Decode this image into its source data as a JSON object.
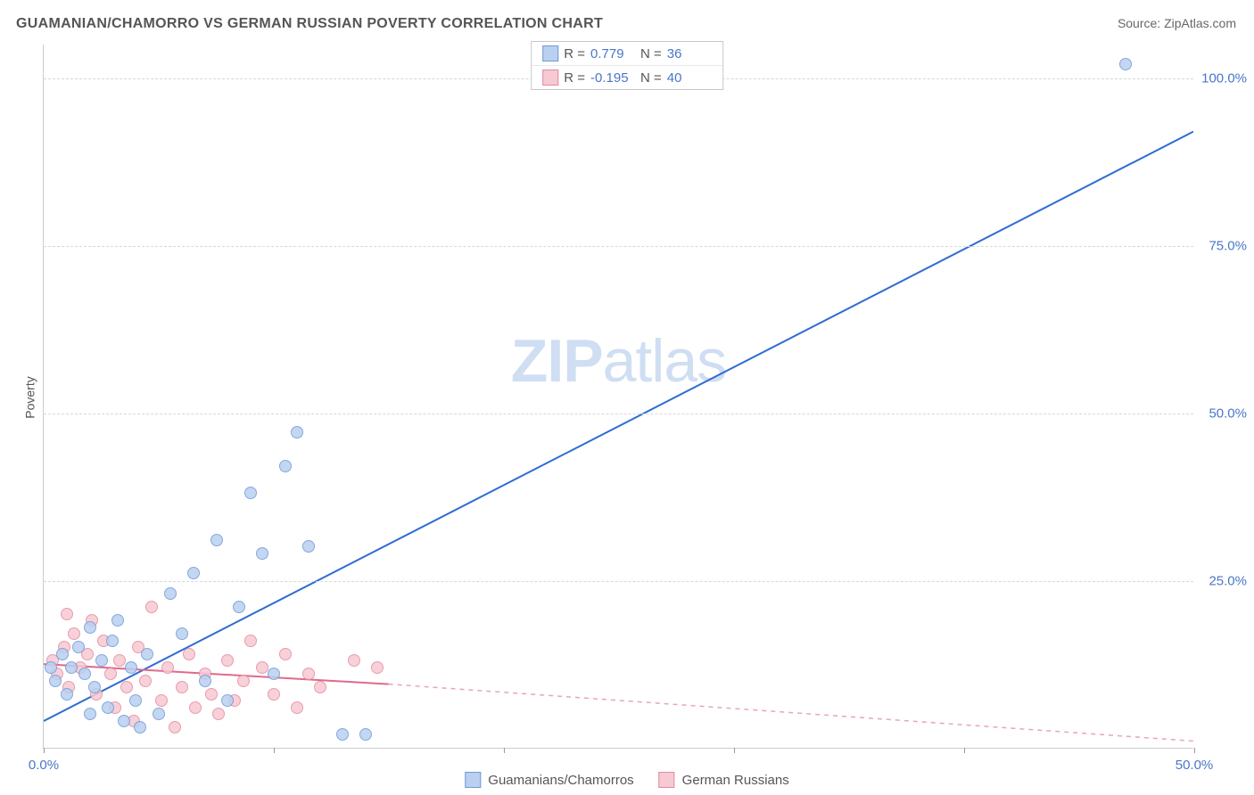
{
  "title": "GUAMANIAN/CHAMORRO VS GERMAN RUSSIAN POVERTY CORRELATION CHART",
  "source_prefix": "Source: ",
  "source_name": "ZipAtlas.com",
  "y_axis_label": "Poverty",
  "watermark_bold": "ZIP",
  "watermark_rest": "atlas",
  "chart": {
    "type": "scatter",
    "xlim": [
      0,
      50
    ],
    "ylim": [
      0,
      105
    ],
    "y_ticks": [
      25,
      50,
      75,
      100
    ],
    "y_tick_labels": [
      "25.0%",
      "50.0%",
      "75.0%",
      "100.0%"
    ],
    "x_ticks": [
      0,
      10,
      20,
      30,
      40,
      50
    ],
    "x_tick_labels": [
      "0.0%",
      "",
      "",
      "",
      "",
      "50.0%"
    ],
    "background_color": "#ffffff",
    "grid_color": "#d8d8d8",
    "axis_color": "#cccccc",
    "label_color": "#4a76c7",
    "series": [
      {
        "name": "Guamanians/Chamorros",
        "color_fill": "#b9d0f0",
        "color_stroke": "#6f9ad6",
        "marker_size": 14,
        "R": "0.779",
        "N": "36",
        "trend": {
          "x1": 0,
          "y1": 4,
          "x2": 50,
          "y2": 92,
          "color": "#2e6cd1",
          "width": 2,
          "dash": "none"
        },
        "points": [
          {
            "x": 0.3,
            "y": 12
          },
          {
            "x": 0.5,
            "y": 10
          },
          {
            "x": 0.8,
            "y": 14
          },
          {
            "x": 1.0,
            "y": 8
          },
          {
            "x": 1.2,
            "y": 12
          },
          {
            "x": 1.5,
            "y": 15
          },
          {
            "x": 1.8,
            "y": 11
          },
          {
            "x": 2.0,
            "y": 18
          },
          {
            "x": 2.2,
            "y": 9
          },
          {
            "x": 2.5,
            "y": 13
          },
          {
            "x": 2.8,
            "y": 6
          },
          {
            "x": 3.0,
            "y": 16
          },
          {
            "x": 3.2,
            "y": 19
          },
          {
            "x": 3.5,
            "y": 4
          },
          {
            "x": 3.8,
            "y": 12
          },
          {
            "x": 4.0,
            "y": 7
          },
          {
            "x": 4.5,
            "y": 14
          },
          {
            "x": 5.0,
            "y": 5
          },
          {
            "x": 5.5,
            "y": 23
          },
          {
            "x": 6.0,
            "y": 17
          },
          {
            "x": 6.5,
            "y": 26
          },
          {
            "x": 7.0,
            "y": 10
          },
          {
            "x": 7.5,
            "y": 31
          },
          {
            "x": 8.0,
            "y": 7
          },
          {
            "x": 8.5,
            "y": 21
          },
          {
            "x": 9.0,
            "y": 38
          },
          {
            "x": 9.5,
            "y": 29
          },
          {
            "x": 10.0,
            "y": 11
          },
          {
            "x": 10.5,
            "y": 42
          },
          {
            "x": 11.0,
            "y": 47
          },
          {
            "x": 11.5,
            "y": 30
          },
          {
            "x": 13.0,
            "y": 2
          },
          {
            "x": 14.0,
            "y": 2
          },
          {
            "x": 47.0,
            "y": 102
          },
          {
            "x": 2.0,
            "y": 5
          },
          {
            "x": 4.2,
            "y": 3
          }
        ]
      },
      {
        "name": "German Russians",
        "color_fill": "#f7c9d2",
        "color_stroke": "#e48aa0",
        "marker_size": 14,
        "R": "-0.195",
        "N": "40",
        "trend_solid": {
          "x1": 0,
          "y1": 12.5,
          "x2": 15,
          "y2": 9.5,
          "color": "#e06a8a",
          "width": 2
        },
        "trend_dash": {
          "x1": 15,
          "y1": 9.5,
          "x2": 50,
          "y2": 1,
          "color": "#e8a5b5",
          "width": 1.5,
          "dash": "5,5"
        },
        "points": [
          {
            "x": 0.4,
            "y": 13
          },
          {
            "x": 0.6,
            "y": 11
          },
          {
            "x": 0.9,
            "y": 15
          },
          {
            "x": 1.1,
            "y": 9
          },
          {
            "x": 1.3,
            "y": 17
          },
          {
            "x": 1.6,
            "y": 12
          },
          {
            "x": 1.9,
            "y": 14
          },
          {
            "x": 2.1,
            "y": 19
          },
          {
            "x": 2.3,
            "y": 8
          },
          {
            "x": 2.6,
            "y": 16
          },
          {
            "x": 2.9,
            "y": 11
          },
          {
            "x": 3.1,
            "y": 6
          },
          {
            "x": 3.3,
            "y": 13
          },
          {
            "x": 3.6,
            "y": 9
          },
          {
            "x": 3.9,
            "y": 4
          },
          {
            "x": 4.1,
            "y": 15
          },
          {
            "x": 4.4,
            "y": 10
          },
          {
            "x": 4.7,
            "y": 21
          },
          {
            "x": 5.1,
            "y": 7
          },
          {
            "x": 5.4,
            "y": 12
          },
          {
            "x": 5.7,
            "y": 3
          },
          {
            "x": 6.0,
            "y": 9
          },
          {
            "x": 6.3,
            "y": 14
          },
          {
            "x": 6.6,
            "y": 6
          },
          {
            "x": 7.0,
            "y": 11
          },
          {
            "x": 7.3,
            "y": 8
          },
          {
            "x": 7.6,
            "y": 5
          },
          {
            "x": 8.0,
            "y": 13
          },
          {
            "x": 8.3,
            "y": 7
          },
          {
            "x": 8.7,
            "y": 10
          },
          {
            "x": 9.0,
            "y": 16
          },
          {
            "x": 9.5,
            "y": 12
          },
          {
            "x": 10.0,
            "y": 8
          },
          {
            "x": 10.5,
            "y": 14
          },
          {
            "x": 11.0,
            "y": 6
          },
          {
            "x": 11.5,
            "y": 11
          },
          {
            "x": 12.0,
            "y": 9
          },
          {
            "x": 13.5,
            "y": 13
          },
          {
            "x": 14.5,
            "y": 12
          },
          {
            "x": 1.0,
            "y": 20
          }
        ]
      }
    ]
  },
  "legend_top": {
    "R_label": "R =",
    "N_label": "N ="
  },
  "legend_bottom": [
    {
      "label": "Guamanians/Chamorros",
      "fill": "#b9d0f0",
      "stroke": "#6f9ad6"
    },
    {
      "label": "German Russians",
      "fill": "#f7c9d2",
      "stroke": "#e48aa0"
    }
  ]
}
